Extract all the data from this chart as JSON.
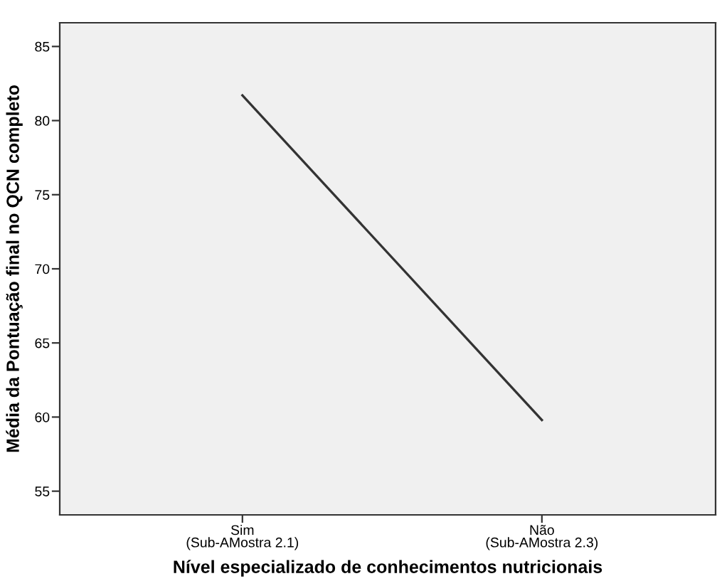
{
  "chart_data": {
    "type": "line",
    "xlabel": "Nível especializado de conhecimentos nutricionais",
    "ylabel": "Média da Pontuação final no QCN completo",
    "categories": [
      "Sim\n(Sub-AMostra 2.1)",
      "Não\n(Sub-AMostra 2.3)"
    ],
    "series": [
      {
        "color": "#333333",
        "values": [
          81.7,
          59.8
        ]
      }
    ],
    "ylim": [
      53.4,
      86.6
    ],
    "yticks": [
      55,
      60,
      65,
      70,
      75,
      80,
      85
    ],
    "grid": false,
    "legend": false
  }
}
